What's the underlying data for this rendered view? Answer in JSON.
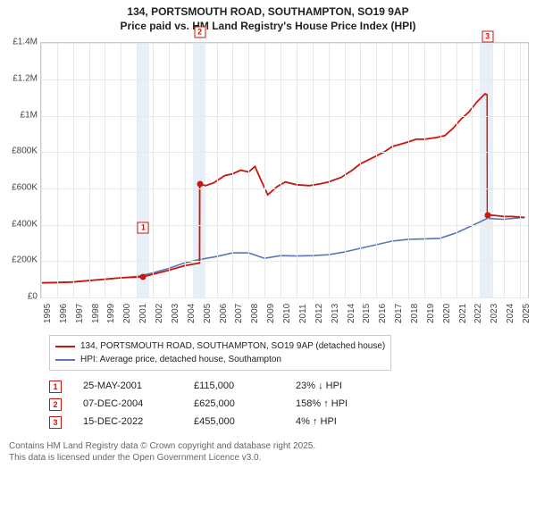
{
  "title_line1": "134, PORTSMOUTH ROAD, SOUTHAMPTON, SO19 9AP",
  "title_line2": "Price paid vs. HM Land Registry's House Price Index (HPI)",
  "colors": {
    "series_price": "#c8170d",
    "series_hpi": "#5a76b8",
    "grid": "#e8e8e8",
    "band": "#e9eff8",
    "axis_border": "#cccccc",
    "text": "#222222",
    "muted": "#666666",
    "bg": "#ffffff"
  },
  "chart": {
    "type": "line",
    "x_start": 1995,
    "x_end": 2025.5,
    "x_ticks": [
      1995,
      1996,
      1997,
      1998,
      1999,
      2000,
      2001,
      2002,
      2003,
      2004,
      2005,
      2006,
      2007,
      2008,
      2009,
      2010,
      2011,
      2012,
      2013,
      2014,
      2015,
      2016,
      2017,
      2018,
      2019,
      2020,
      2021,
      2022,
      2023,
      2024,
      2025
    ],
    "y_min": 0,
    "y_max": 1400000,
    "y_ticks": [
      {
        "v": 0,
        "label": "£0"
      },
      {
        "v": 200000,
        "label": "£200K"
      },
      {
        "v": 400000,
        "label": "£400K"
      },
      {
        "v": 600000,
        "label": "£600K"
      },
      {
        "v": 800000,
        "label": "£800K"
      },
      {
        "v": 1000000,
        "label": "£1M"
      },
      {
        "v": 1200000,
        "label": "£1.2M"
      },
      {
        "v": 1400000,
        "label": "£1.4M"
      }
    ],
    "bands": [
      {
        "from": 2001.0,
        "to": 2001.8
      },
      {
        "from": 2004.5,
        "to": 2005.3
      },
      {
        "from": 2022.5,
        "to": 2023.3
      }
    ],
    "series_price": {
      "line_width": 1.8,
      "points": [
        [
          1995.0,
          80000
        ],
        [
          1996.0,
          82000
        ],
        [
          1997.0,
          85000
        ],
        [
          1998.0,
          93000
        ],
        [
          1999.0,
          100000
        ],
        [
          2000.0,
          108000
        ],
        [
          2001.0,
          112000
        ],
        [
          2001.4,
          115000
        ],
        [
          2002.0,
          127000
        ],
        [
          2003.0,
          150000
        ],
        [
          2004.0,
          175000
        ],
        [
          2004.93,
          189000
        ],
        [
          2004.94,
          625000
        ],
        [
          2005.3,
          615000
        ],
        [
          2005.8,
          630000
        ],
        [
          2006.5,
          670000
        ],
        [
          2007.0,
          680000
        ],
        [
          2007.5,
          700000
        ],
        [
          2008.0,
          690000
        ],
        [
          2008.4,
          720000
        ],
        [
          2008.8,
          640000
        ],
        [
          2009.2,
          565000
        ],
        [
          2009.8,
          610000
        ],
        [
          2010.3,
          635000
        ],
        [
          2011.0,
          620000
        ],
        [
          2011.8,
          615000
        ],
        [
          2012.5,
          625000
        ],
        [
          2013.0,
          635000
        ],
        [
          2013.8,
          660000
        ],
        [
          2014.5,
          700000
        ],
        [
          2015.0,
          735000
        ],
        [
          2015.8,
          770000
        ],
        [
          2016.5,
          800000
        ],
        [
          2017.0,
          830000
        ],
        [
          2017.8,
          850000
        ],
        [
          2018.5,
          870000
        ],
        [
          2019.0,
          870000
        ],
        [
          2019.8,
          880000
        ],
        [
          2020.3,
          890000
        ],
        [
          2020.8,
          930000
        ],
        [
          2021.3,
          980000
        ],
        [
          2021.8,
          1020000
        ],
        [
          2022.3,
          1075000
        ],
        [
          2022.8,
          1120000
        ],
        [
          2022.95,
          1115000
        ],
        [
          2022.96,
          455000
        ],
        [
          2023.5,
          450000
        ],
        [
          2024.0,
          445000
        ],
        [
          2024.5,
          445000
        ],
        [
          2025.0,
          442000
        ],
        [
          2025.3,
          440000
        ]
      ]
    },
    "series_hpi": {
      "line_width": 1.6,
      "points": [
        [
          1995.0,
          80000
        ],
        [
          1996.0,
          82000
        ],
        [
          1997.0,
          85000
        ],
        [
          1998.0,
          93000
        ],
        [
          1999.0,
          100000
        ],
        [
          2000.0,
          108000
        ],
        [
          2001.0,
          115000
        ],
        [
          2002.0,
          135000
        ],
        [
          2003.0,
          160000
        ],
        [
          2004.0,
          190000
        ],
        [
          2005.0,
          210000
        ],
        [
          2006.0,
          225000
        ],
        [
          2007.0,
          245000
        ],
        [
          2008.0,
          245000
        ],
        [
          2009.0,
          215000
        ],
        [
          2010.0,
          230000
        ],
        [
          2011.0,
          228000
        ],
        [
          2012.0,
          230000
        ],
        [
          2013.0,
          235000
        ],
        [
          2014.0,
          250000
        ],
        [
          2015.0,
          270000
        ],
        [
          2016.0,
          290000
        ],
        [
          2017.0,
          310000
        ],
        [
          2018.0,
          320000
        ],
        [
          2019.0,
          322000
        ],
        [
          2020.0,
          325000
        ],
        [
          2021.0,
          355000
        ],
        [
          2022.0,
          395000
        ],
        [
          2022.96,
          435000
        ],
        [
          2023.5,
          432000
        ],
        [
          2024.0,
          430000
        ],
        [
          2025.0,
          438000
        ],
        [
          2025.3,
          440000
        ]
      ]
    },
    "markers": [
      {
        "n": "1",
        "x": 2001.4,
        "y": 115000,
        "label_dy": -55,
        "color": "#c8170d"
      },
      {
        "n": "2",
        "x": 2004.94,
        "y": 625000,
        "label_dy": -170,
        "color": "#c8170d"
      },
      {
        "n": "3",
        "x": 2022.96,
        "y": 455000,
        "label_dy": -200,
        "color": "#c8170d"
      }
    ]
  },
  "legend": {
    "items": [
      {
        "color": "#c8170d",
        "label": "134, PORTSMOUTH ROAD, SOUTHAMPTON, SO19 9AP (detached house)"
      },
      {
        "color": "#5a76b8",
        "label": "HPI: Average price, detached house, Southampton"
      }
    ]
  },
  "sales": [
    {
      "n": "1",
      "color": "#c8170d",
      "date": "25-MAY-2001",
      "price": "£115,000",
      "delta": "23% ↓ HPI"
    },
    {
      "n": "2",
      "color": "#c8170d",
      "date": "07-DEC-2004",
      "price": "£625,000",
      "delta": "158% ↑ HPI"
    },
    {
      "n": "3",
      "color": "#c8170d",
      "date": "15-DEC-2022",
      "price": "£455,000",
      "delta": "4% ↑ HPI"
    }
  ],
  "attribution_line1": "Contains HM Land Registry data © Crown copyright and database right 2025.",
  "attribution_line2": "This data is licensed under the Open Government Licence v3.0."
}
